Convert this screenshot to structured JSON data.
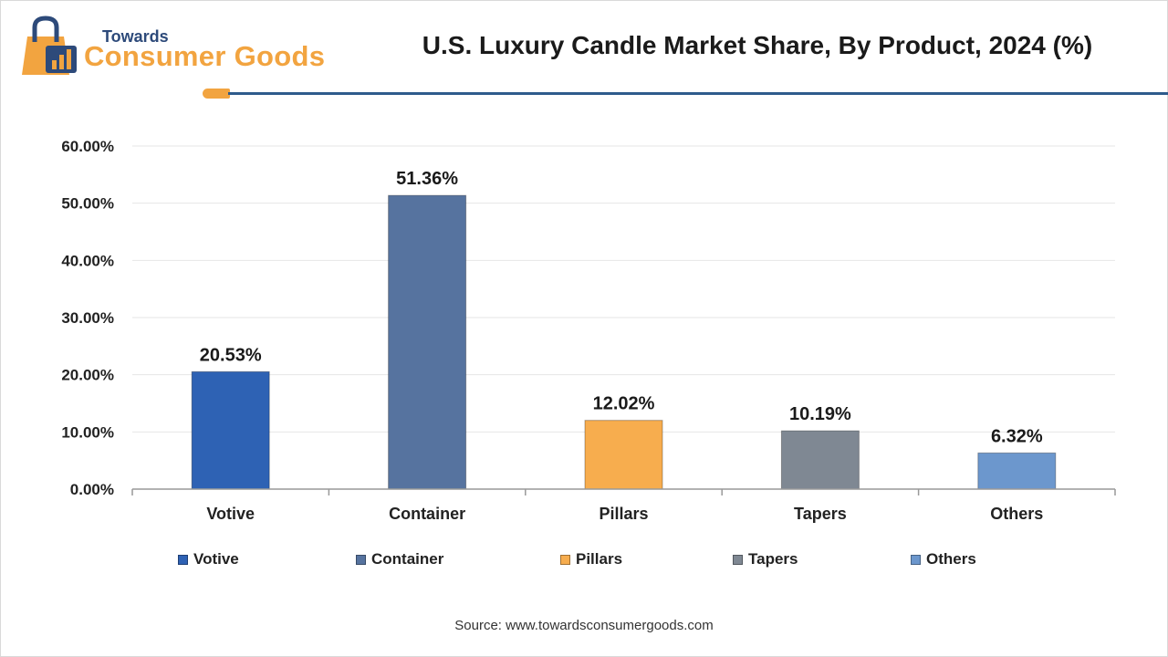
{
  "brand": {
    "line1": "Towards",
    "line2": "Consumer Goods"
  },
  "colors": {
    "accent": "#f2a440",
    "rule": "#2e5b8c"
  },
  "chart_data": {
    "type": "bar",
    "title": "U.S. Luxury Candle Market Share, By Product, 2024 (%)",
    "xlabel": "",
    "ylabel": "",
    "ylim": [
      0,
      60
    ],
    "yticks": [
      "0.00%",
      "10.00%",
      "20.00%",
      "30.00%",
      "40.00%",
      "50.00%",
      "60.00%"
    ],
    "ytick_values": [
      0,
      10,
      20,
      30,
      40,
      50,
      60
    ],
    "categories": [
      "Votive",
      "Container",
      "Pillars",
      "Tapers",
      "Others"
    ],
    "values": [
      20.53,
      51.36,
      12.02,
      10.19,
      6.32
    ],
    "labels": [
      "20.53%",
      "51.36%",
      "12.02%",
      "10.19%",
      "6.32%"
    ],
    "colors": [
      "#2e62b4",
      "#56739f",
      "#f7ad4e",
      "#7f8893",
      "#6c97cd"
    ],
    "grid": true,
    "legend_position": "bottom"
  },
  "source": "Source: www.towardsconsumergoods.com"
}
